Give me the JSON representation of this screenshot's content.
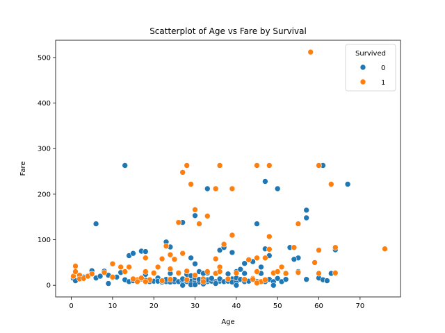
{
  "chart_data": {
    "type": "scatter",
    "title": "Scatterplot of Age vs Fare by Survival",
    "xlabel": "Age",
    "ylabel": "Fare",
    "xlim": [
      -3.8,
      79.8
    ],
    "ylim": [
      -25.6,
      538
    ],
    "xticks": [
      0,
      10,
      20,
      30,
      40,
      50,
      60,
      70
    ],
    "yticks": [
      0,
      100,
      200,
      300,
      400,
      500
    ],
    "grid": false,
    "legend": {
      "title": "Survived",
      "placement": "top-right"
    },
    "series": [
      {
        "name": "0",
        "color": "#1f77b4",
        "points": [
          [
            13,
            263
          ],
          [
            6,
            135
          ],
          [
            33,
            212
          ],
          [
            47,
            228
          ],
          [
            50,
            212
          ],
          [
            61,
            263
          ],
          [
            67,
            222
          ],
          [
            57,
            165
          ],
          [
            57,
            148
          ],
          [
            45,
            135
          ],
          [
            27,
            138
          ],
          [
            23,
            95
          ],
          [
            30,
            153
          ],
          [
            53,
            83
          ],
          [
            55,
            60
          ],
          [
            54,
            57
          ],
          [
            14,
            65
          ],
          [
            15,
            70
          ],
          [
            17,
            75
          ],
          [
            18,
            74
          ],
          [
            24,
            84
          ],
          [
            47,
            80
          ],
          [
            36,
            77
          ],
          [
            37,
            83
          ],
          [
            39,
            72
          ],
          [
            29,
            60
          ],
          [
            30,
            47
          ],
          [
            33,
            27
          ],
          [
            31,
            30
          ],
          [
            40,
            30
          ],
          [
            42,
            48
          ],
          [
            44,
            52
          ],
          [
            46,
            40
          ],
          [
            48,
            65
          ],
          [
            38,
            25
          ],
          [
            41,
            35
          ],
          [
            0.5,
            15
          ],
          [
            1,
            10
          ],
          [
            2,
            22
          ],
          [
            3,
            18
          ],
          [
            5,
            32
          ],
          [
            6,
            16
          ],
          [
            7,
            20
          ],
          [
            8,
            31
          ],
          [
            9,
            4
          ],
          [
            9,
            22
          ],
          [
            11,
            18
          ],
          [
            12,
            28
          ],
          [
            13,
            12
          ],
          [
            14,
            8
          ],
          [
            15,
            10
          ],
          [
            16,
            9
          ],
          [
            17,
            14
          ],
          [
            18,
            24
          ],
          [
            18,
            11
          ],
          [
            19,
            8
          ],
          [
            20,
            9
          ],
          [
            20,
            26
          ],
          [
            21,
            8
          ],
          [
            21,
            16
          ],
          [
            22,
            7
          ],
          [
            22,
            10
          ],
          [
            23,
            8
          ],
          [
            23,
            13
          ],
          [
            24,
            7
          ],
          [
            24,
            26
          ],
          [
            25,
            8
          ],
          [
            25,
            13
          ],
          [
            26,
            8
          ],
          [
            26,
            26
          ],
          [
            27,
            9
          ],
          [
            27,
            14
          ],
          [
            28,
            8
          ],
          [
            28,
            24
          ],
          [
            29,
            10
          ],
          [
            29,
            21
          ],
          [
            30,
            8
          ],
          [
            30,
            16
          ],
          [
            31,
            7
          ],
          [
            31,
            13
          ],
          [
            32,
            8
          ],
          [
            32,
            26
          ],
          [
            33,
            8
          ],
          [
            33,
            12
          ],
          [
            34,
            9
          ],
          [
            34,
            15
          ],
          [
            35,
            8
          ],
          [
            35,
            26
          ],
          [
            36,
            9
          ],
          [
            36,
            14
          ],
          [
            37,
            8
          ],
          [
            38,
            9
          ],
          [
            39,
            14
          ],
          [
            39,
            7
          ],
          [
            40,
            8
          ],
          [
            40,
            16
          ],
          [
            41,
            13
          ],
          [
            42,
            8
          ],
          [
            42,
            26
          ],
          [
            43,
            9
          ],
          [
            44,
            13
          ],
          [
            45,
            8
          ],
          [
            46,
            26
          ],
          [
            47,
            8
          ],
          [
            48,
            13
          ],
          [
            49,
            8
          ],
          [
            49,
            26
          ],
          [
            50,
            15
          ],
          [
            51,
            8
          ],
          [
            52,
            13
          ],
          [
            55,
            30
          ],
          [
            57,
            13
          ],
          [
            60,
            16
          ],
          [
            61,
            12
          ],
          [
            62,
            10
          ],
          [
            63,
            26
          ],
          [
            64,
            78
          ],
          [
            27,
            0
          ],
          [
            29,
            1
          ],
          [
            40,
            0
          ],
          [
            49,
            0
          ],
          [
            32,
            3
          ],
          [
            35,
            4
          ],
          [
            21,
            9
          ],
          [
            30,
            1
          ]
        ]
      },
      {
        "name": "1",
        "color": "#ff7f0e",
        "points": [
          [
            58,
            512
          ],
          [
            28,
            263
          ],
          [
            36,
            263
          ],
          [
            45,
            263
          ],
          [
            48,
            263
          ],
          [
            60,
            263
          ],
          [
            27,
            248
          ],
          [
            29,
            222
          ],
          [
            63,
            222
          ],
          [
            35,
            212
          ],
          [
            39,
            212
          ],
          [
            30,
            166
          ],
          [
            33,
            152
          ],
          [
            31,
            135
          ],
          [
            55,
            135
          ],
          [
            26,
            138
          ],
          [
            39,
            110
          ],
          [
            48,
            107
          ],
          [
            23,
            86
          ],
          [
            37,
            90
          ],
          [
            54,
            83
          ],
          [
            76,
            80
          ],
          [
            64,
            83
          ],
          [
            60,
            77
          ],
          [
            25,
            57
          ],
          [
            35,
            58
          ],
          [
            43,
            56
          ],
          [
            45,
            60
          ],
          [
            47,
            60
          ],
          [
            48,
            79
          ],
          [
            59,
            50
          ],
          [
            18,
            60
          ],
          [
            22,
            58
          ],
          [
            24,
            67
          ],
          [
            27,
            70
          ],
          [
            36,
            40
          ],
          [
            24,
            36
          ],
          [
            14,
            40
          ],
          [
            10,
            47
          ],
          [
            21,
            40
          ],
          [
            16,
            12
          ],
          [
            0.5,
            20
          ],
          [
            1,
            42
          ],
          [
            1,
            30
          ],
          [
            2,
            22
          ],
          [
            2,
            14
          ],
          [
            3,
            15
          ],
          [
            4,
            20
          ],
          [
            5,
            25
          ],
          [
            8,
            28
          ],
          [
            10,
            18
          ],
          [
            12,
            40
          ],
          [
            13,
            30
          ],
          [
            16,
            8
          ],
          [
            17,
            16
          ],
          [
            18,
            30
          ],
          [
            19,
            12
          ],
          [
            20,
            27
          ],
          [
            22,
            10
          ],
          [
            24,
            14
          ],
          [
            26,
            27
          ],
          [
            28,
            12
          ],
          [
            30,
            22
          ],
          [
            32,
            14
          ],
          [
            35,
            26
          ],
          [
            36,
            30
          ],
          [
            38,
            14
          ],
          [
            40,
            27
          ],
          [
            42,
            13
          ],
          [
            44,
            15
          ],
          [
            45,
            30
          ],
          [
            46,
            8
          ],
          [
            47,
            12
          ],
          [
            49,
            27
          ],
          [
            51,
            40
          ],
          [
            52,
            26
          ],
          [
            55,
            28
          ],
          [
            60,
            26
          ],
          [
            64,
            27
          ],
          [
            18,
            8
          ],
          [
            15,
            14
          ],
          [
            32,
            8
          ],
          [
            33,
            30
          ],
          [
            44,
            13
          ],
          [
            45,
            5
          ],
          [
            28,
            31
          ],
          [
            24,
            13
          ],
          [
            50,
            30
          ]
        ]
      }
    ]
  }
}
